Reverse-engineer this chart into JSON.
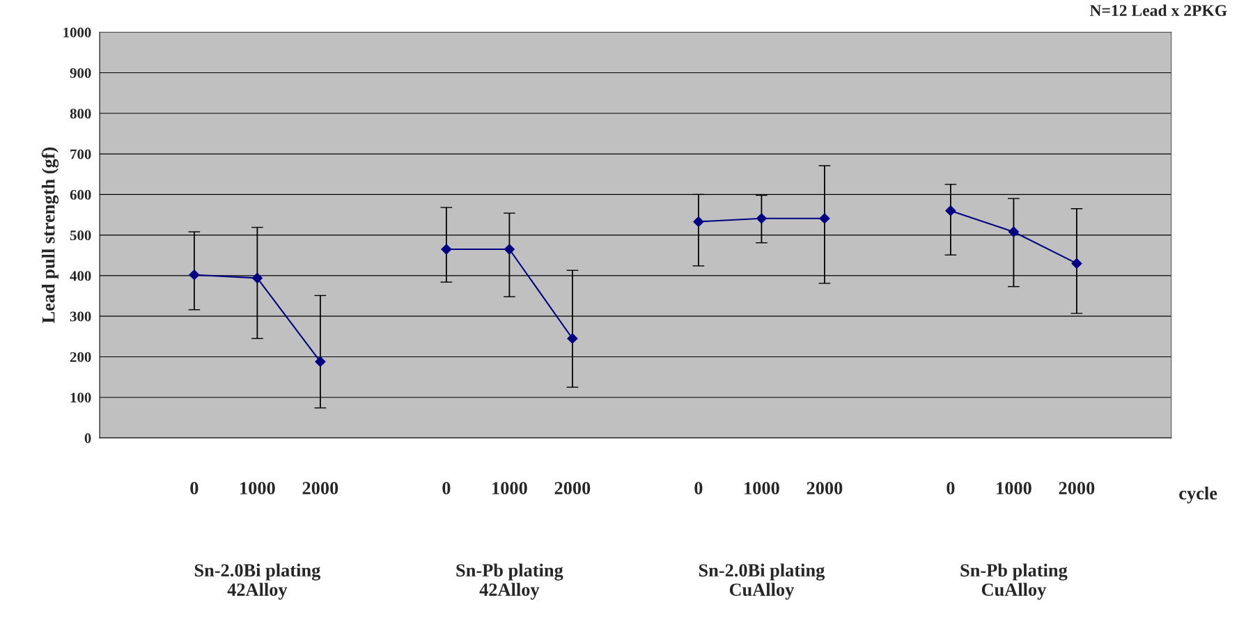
{
  "chart_data": {
    "type": "line",
    "ylabel": "Lead pull strength (gf)",
    "xlabel": "cycle",
    "categories": [
      null,
      "0",
      "1000",
      "2000",
      null,
      "0",
      "1000",
      "2000",
      null,
      "0",
      "1000",
      "2000",
      null,
      "0",
      "1000",
      "2000",
      null
    ],
    "series": [
      {
        "color": "#000080",
        "values": [
          null,
          402,
          394,
          188,
          null,
          465,
          465,
          245,
          null,
          533,
          541,
          541,
          null,
          560,
          508,
          430,
          null
        ],
        "errors": [
          null,
          [
            316,
            508
          ],
          [
            245,
            519
          ],
          [
            74,
            351
          ],
          null,
          [
            384,
            568
          ],
          [
            348,
            554
          ],
          [
            125,
            413
          ],
          null,
          [
            424,
            600
          ],
          [
            481,
            598
          ],
          [
            381,
            671
          ],
          null,
          [
            451,
            625
          ],
          [
            373,
            590
          ],
          [
            307,
            565
          ],
          null
        ]
      }
    ],
    "ylim": [
      0,
      1000
    ],
    "yticks": [
      0,
      100,
      200,
      300,
      400,
      500,
      600,
      700,
      800,
      900,
      1000
    ],
    "grid": "y",
    "marker": "diamond",
    "line_style": "solid",
    "annotations": [
      "N=12 Lead x 2PKG",
      "Sn-2.0Bi plating\n42Alloy",
      "Sn-Pb plating\n42Alloy",
      "Sn-2.0Bi plating\nCuAlloy",
      "Sn-Pb plating\nCuAlloy"
    ]
  }
}
